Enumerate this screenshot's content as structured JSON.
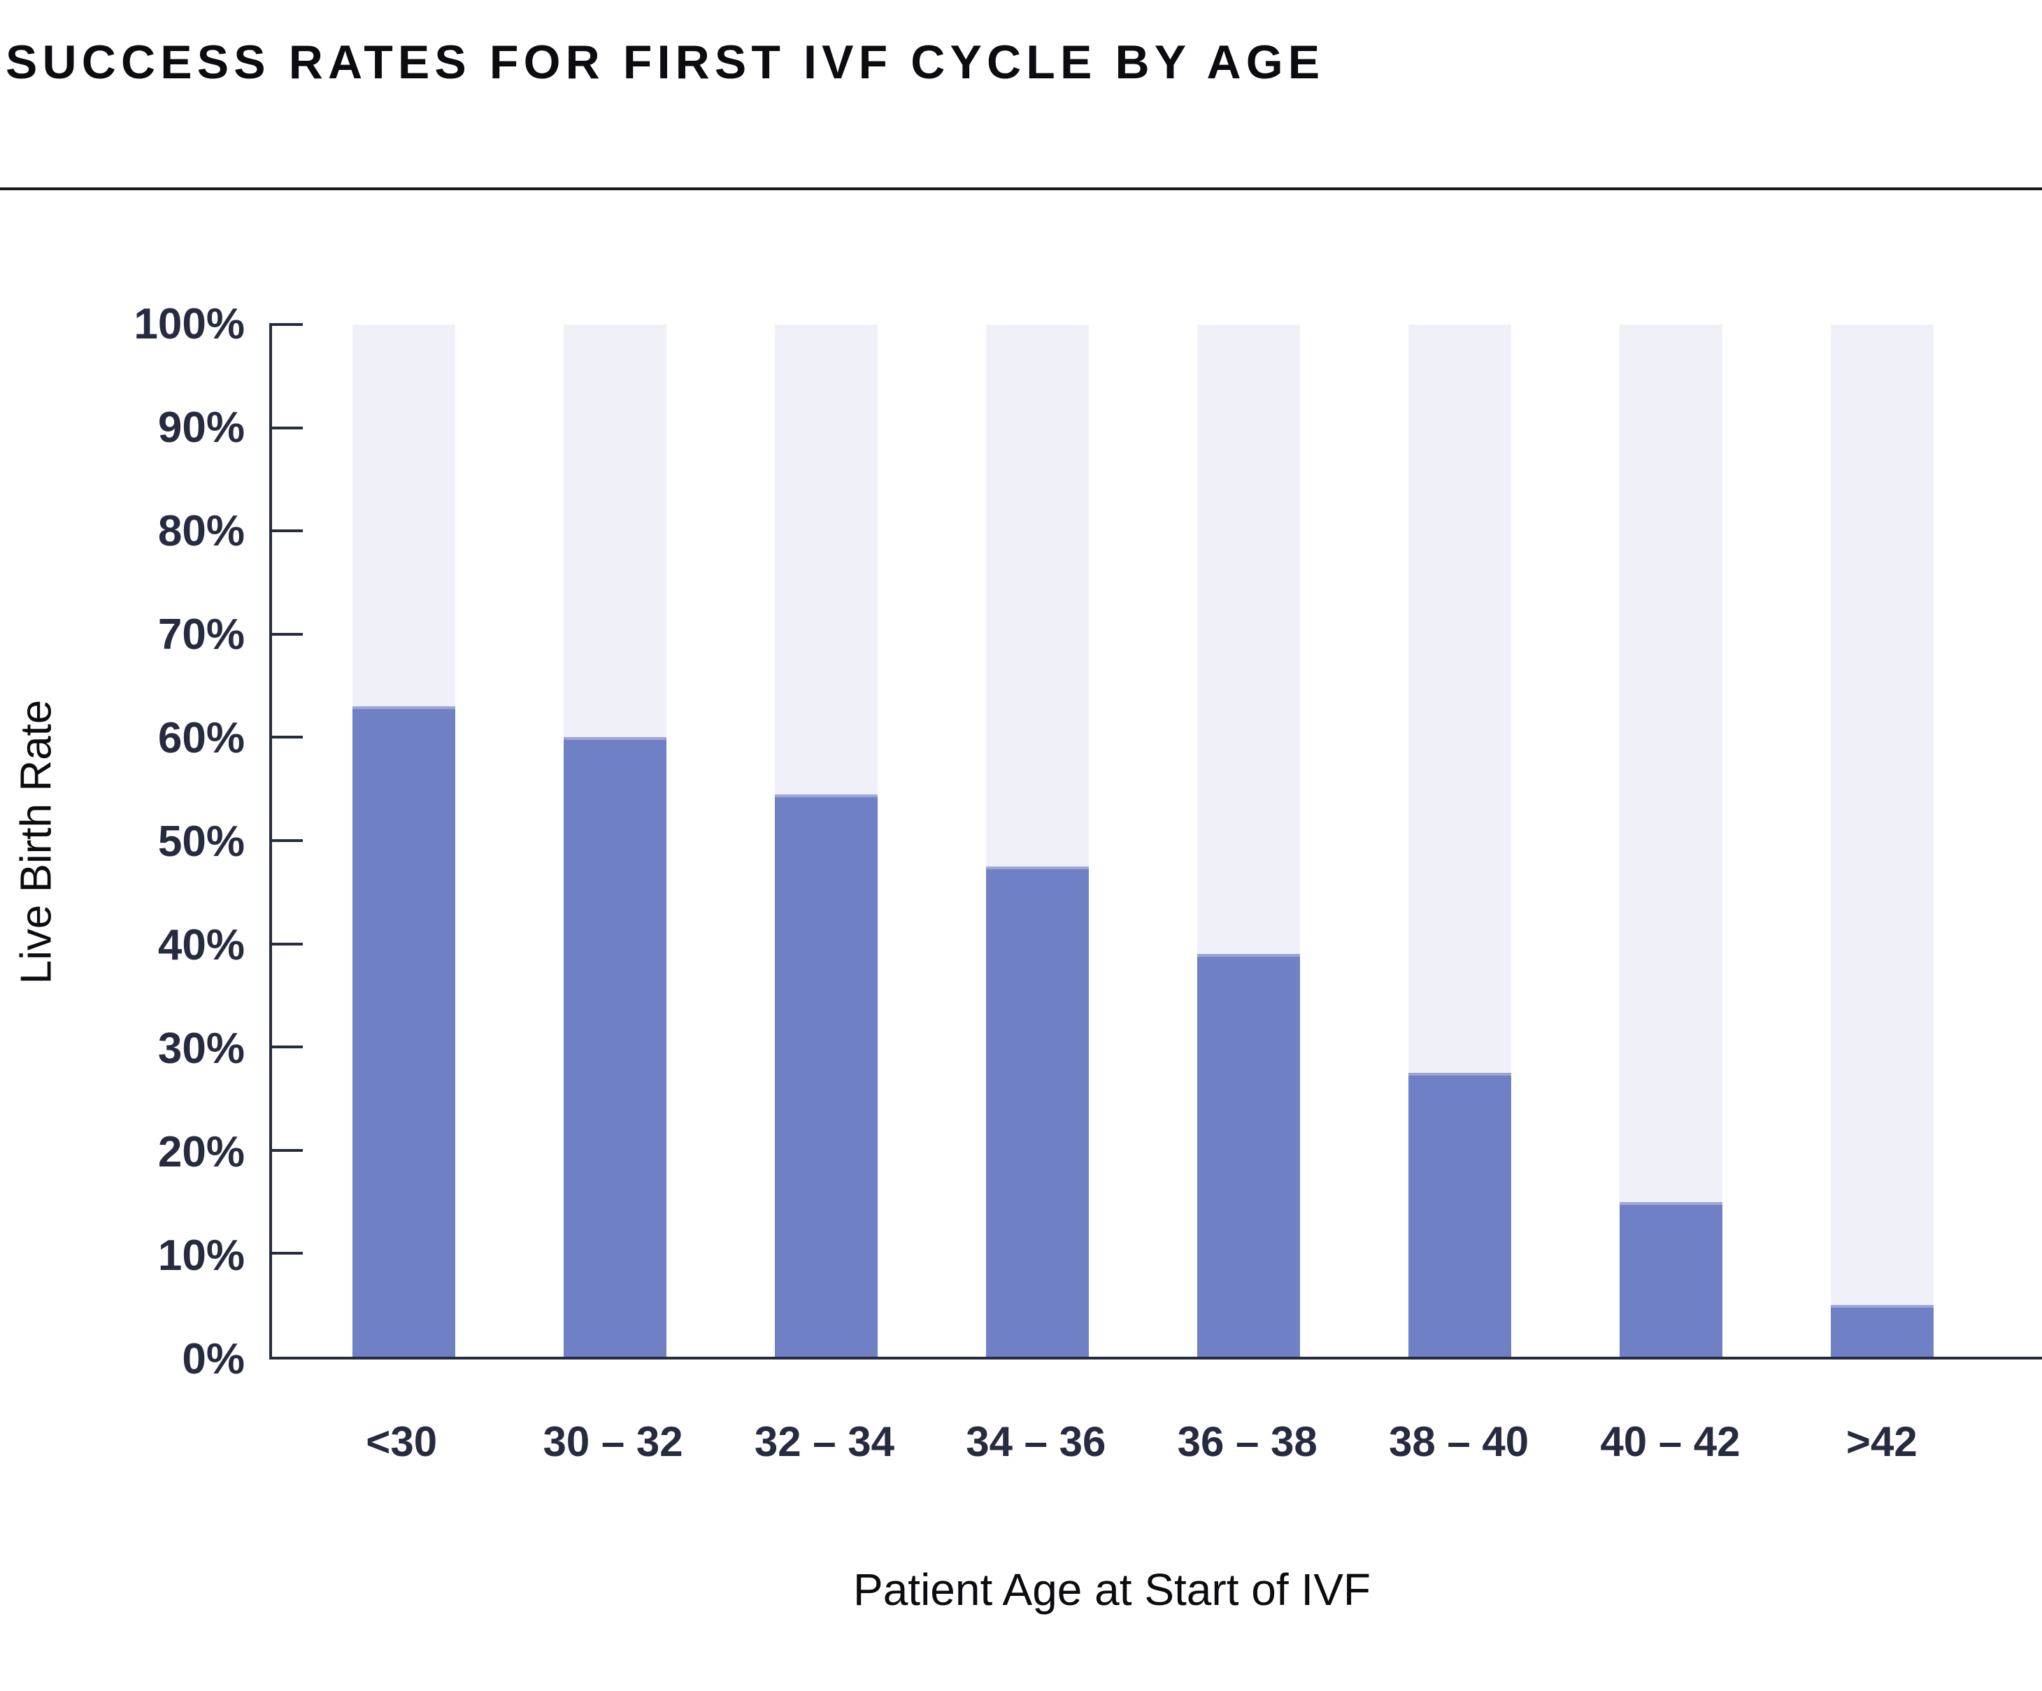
{
  "title": "SUCCESS RATES FOR FIRST IVF CYCLE BY AGE",
  "chart_data": {
    "type": "bar",
    "title": "SUCCESS RATES FOR FIRST IVF CYCLE BY AGE",
    "categories": [
      "<30",
      "30 – 32",
      "32 – 34",
      "34 – 36",
      "36 – 38",
      "38 – 40",
      "40 – 42",
      ">42"
    ],
    "values": [
      63,
      60,
      54.5,
      47.5,
      39,
      27.5,
      15,
      5
    ],
    "xlabel": "Patient Age at Start of IVF",
    "ylabel": "Live Birth Rate",
    "ylim": [
      0,
      100
    ],
    "yticks": [
      0,
      10,
      20,
      30,
      40,
      50,
      60,
      70,
      80,
      90,
      100
    ],
    "ytick_labels": [
      "0%",
      "10%",
      "20%",
      "30%",
      "40%",
      "50%",
      "60%",
      "70%",
      "80%",
      "90%",
      "100%"
    ],
    "grid": false,
    "legend": false,
    "bar_full_height_track": true,
    "colors": {
      "bar_fill": "#7080c4",
      "bar_track": "#f0f0f9",
      "axis": "#272b40",
      "tick_text": "#272b40",
      "title_text": "#0c0c10",
      "axis_title_text": "#0c0c10",
      "divider": "#17171d",
      "background": "#ffffff"
    }
  }
}
